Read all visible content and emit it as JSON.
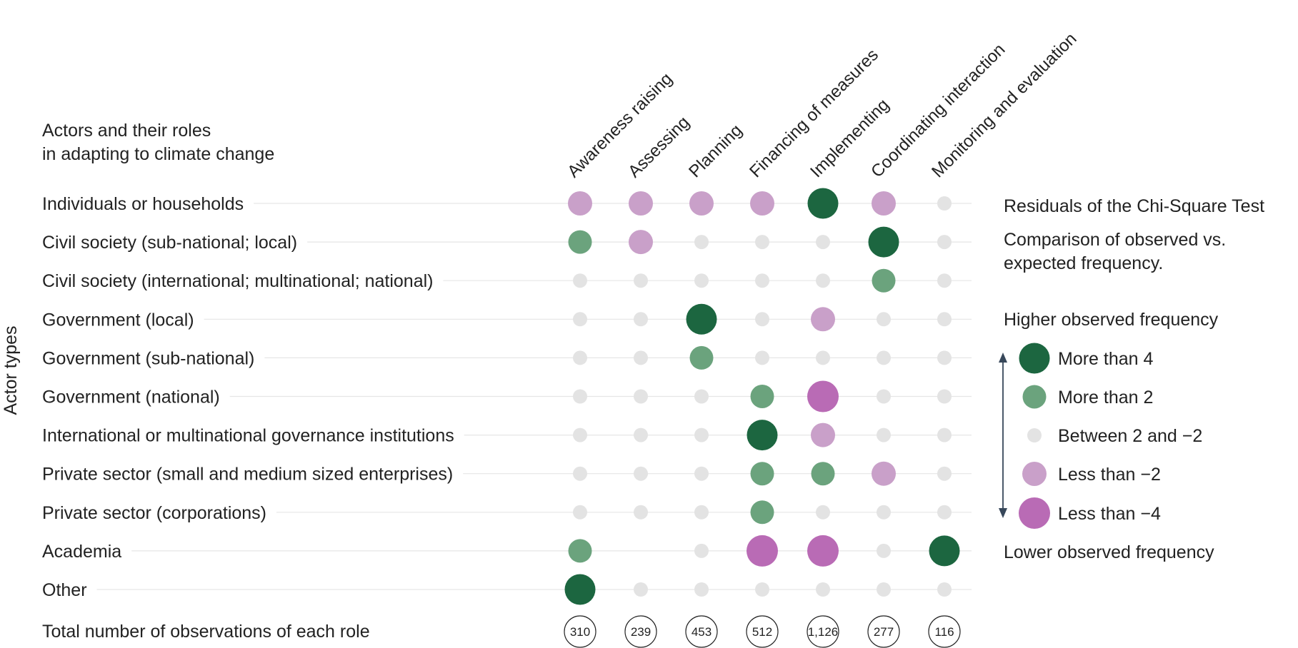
{
  "chart_data": {
    "type": "bubble-matrix",
    "title_lines": [
      "Actors and their roles",
      "in adapting to climate change"
    ],
    "y_axis_title": "Actor types",
    "roles": [
      "Awareness raising",
      "Assessing",
      "Planning",
      "Financing of measures",
      "Implementing",
      "Coordinating interaction",
      "Monitoring and evaluation"
    ],
    "actors": [
      "Individuals or households",
      "Civil society (sub-national; local)",
      "Civil society (international; multinational; national)",
      "Government (local)",
      "Government (sub-national)",
      "Government (national)",
      "International or multinational governance institutions",
      "Private sector (small and medium sized enterprises)",
      "Private sector (corporations)",
      "Academia",
      "Other"
    ],
    "residual_categories": {
      "gt4": "More than 4",
      "gt2": "More than 2",
      "mid": "Between 2 and −2",
      "lt-2": "Less than −2",
      "lt-4": "Less than −4"
    },
    "residual_levels": [
      [
        "lt-2",
        "lt-2",
        "lt-2",
        "lt-2",
        "gt4",
        "lt-2",
        "mid"
      ],
      [
        "gt2",
        "lt-2",
        "mid",
        "mid",
        "mid",
        "gt4",
        "mid"
      ],
      [
        "mid",
        "mid",
        "mid",
        "mid",
        "mid",
        "gt2",
        "mid"
      ],
      [
        "mid",
        "mid",
        "gt4",
        "mid",
        "lt-2",
        "mid",
        "mid"
      ],
      [
        "mid",
        "mid",
        "gt2",
        "mid",
        "mid",
        "mid",
        "mid"
      ],
      [
        "mid",
        "mid",
        "mid",
        "gt2",
        "lt-4",
        "mid",
        "mid"
      ],
      [
        "mid",
        "mid",
        "mid",
        "gt4",
        "lt-2",
        "mid",
        "mid"
      ],
      [
        "mid",
        "mid",
        "mid",
        "gt2",
        "gt2",
        "lt-2",
        "mid"
      ],
      [
        "mid",
        "mid",
        "mid",
        "gt2",
        "mid",
        "mid",
        "mid"
      ],
      [
        "gt2",
        null,
        "mid",
        "lt-4",
        "lt-4",
        "mid",
        "gt4"
      ],
      [
        "gt4",
        "mid",
        "mid",
        "mid",
        "mid",
        "mid",
        "mid"
      ]
    ],
    "totals_label": "Total number of observations of each role",
    "totals": [
      310,
      239,
      453,
      512,
      1126,
      277,
      116
    ],
    "totals_display": [
      "310",
      "239",
      "453",
      "512",
      "1,126",
      "277",
      "116"
    ],
    "legend": {
      "title": "Residuals of the Chi-Square Test",
      "subtitle_lines": [
        "Comparison of observed vs.",
        "expected frequency."
      ],
      "higher_label": "Higher observed frequency",
      "lower_label": "Lower observed frequency",
      "order": [
        "gt4",
        "gt2",
        "mid",
        "lt-2",
        "lt-4"
      ]
    },
    "colors": {
      "gt4": "#1c6640",
      "gt2": "#6ba37d",
      "mid": "#e3e3e3",
      "lt-2": "#c9a0c9",
      "lt-4": "#b96bb5",
      "guide": "#e6e6e6",
      "text": "#222222",
      "arrow": "#37475a"
    }
  }
}
